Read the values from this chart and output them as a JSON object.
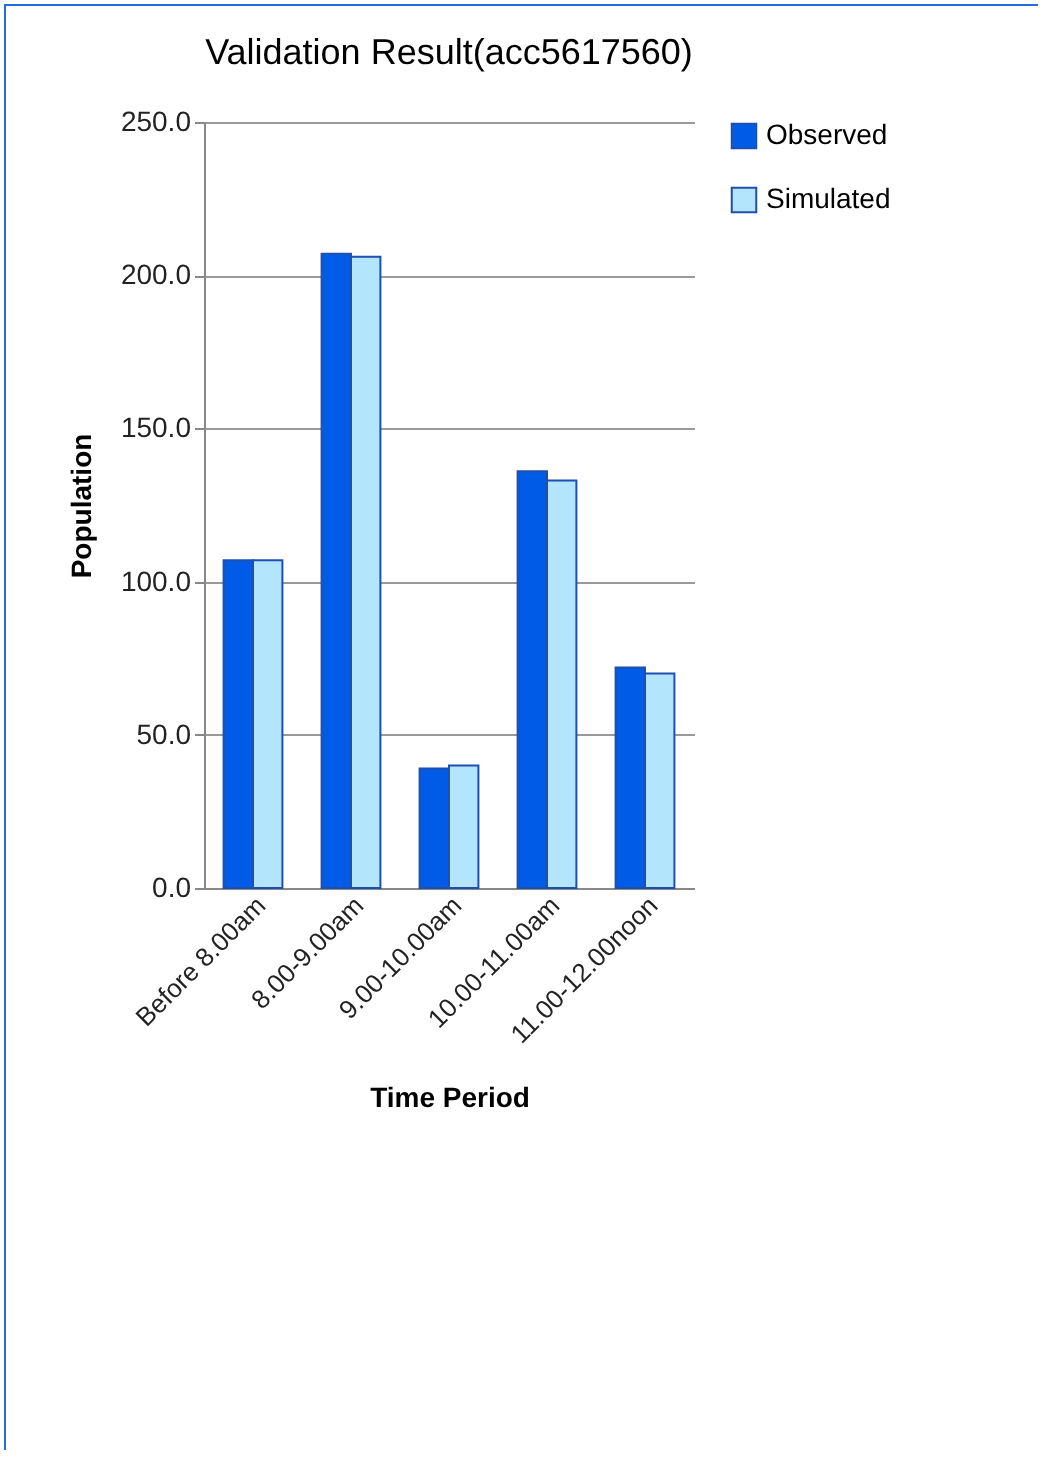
{
  "chart_data": {
    "type": "bar",
    "title": "Validation Result(acc5617560)",
    "xlabel": "Time Period",
    "ylabel": "Population",
    "categories": [
      "Before 8.00am",
      "8.00-9.00am",
      "9.00-10.00am",
      "10.00-11.00am",
      "11.00-12.00noon"
    ],
    "series": [
      {
        "name": "Observed",
        "color": "#005ce6",
        "values": [
          107,
          207,
          39,
          136,
          72
        ]
      },
      {
        "name": "Simulated",
        "color": "#b3e5fc",
        "values": [
          107,
          206,
          40,
          133,
          70
        ]
      }
    ],
    "ylim": [
      0,
      250
    ],
    "yticks": [
      {
        "value": 0,
        "label": "0.0"
      },
      {
        "value": 50,
        "label": "50.0"
      },
      {
        "value": 100,
        "label": "100.0"
      },
      {
        "value": 150,
        "label": "150.0"
      },
      {
        "value": 200,
        "label": "200.0"
      },
      {
        "value": 250,
        "label": "250.0"
      }
    ],
    "grid": "y",
    "legend": "right"
  }
}
